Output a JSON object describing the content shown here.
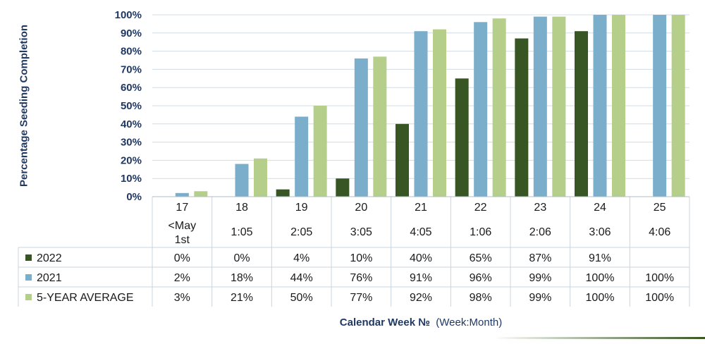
{
  "chart_data": {
    "type": "bar",
    "ylabel": "Percentage Seeding Completion",
    "xlabel": {
      "main": "Calendar Week №",
      "sub": "(Week:Month)"
    },
    "ylim": [
      0,
      100
    ],
    "yticks": [
      "0%",
      "10%",
      "20%",
      "30%",
      "40%",
      "50%",
      "60%",
      "70%",
      "80%",
      "90%",
      "100%"
    ],
    "grid": true,
    "categories": [
      "17",
      "18",
      "19",
      "20",
      "21",
      "22",
      "23",
      "24",
      "25"
    ],
    "week_month": [
      "<May\n1st",
      "1:05",
      "2:05",
      "3:05",
      "4:05",
      "1:06",
      "2:06",
      "3:06",
      "4:06"
    ],
    "series": [
      {
        "name": "2022",
        "color": "#375623",
        "values": [
          0,
          0,
          4,
          10,
          40,
          65,
          87,
          91,
          null
        ],
        "labels": [
          "0%",
          "0%",
          "4%",
          "10%",
          "40%",
          "65%",
          "87%",
          "91%",
          ""
        ]
      },
      {
        "name": "2021",
        "color": "#7aaecb",
        "values": [
          2,
          18,
          44,
          76,
          91,
          96,
          99,
          100,
          100
        ],
        "labels": [
          "2%",
          "18%",
          "44%",
          "76%",
          "91%",
          "96%",
          "99%",
          "100%",
          "100%"
        ]
      },
      {
        "name": "5-YEAR AVERAGE",
        "color": "#b5cf8a",
        "values": [
          3,
          21,
          50,
          77,
          92,
          98,
          99,
          100,
          100
        ],
        "labels": [
          "3%",
          "21%",
          "50%",
          "77%",
          "92%",
          "98%",
          "99%",
          "100%",
          "100%"
        ]
      }
    ]
  }
}
